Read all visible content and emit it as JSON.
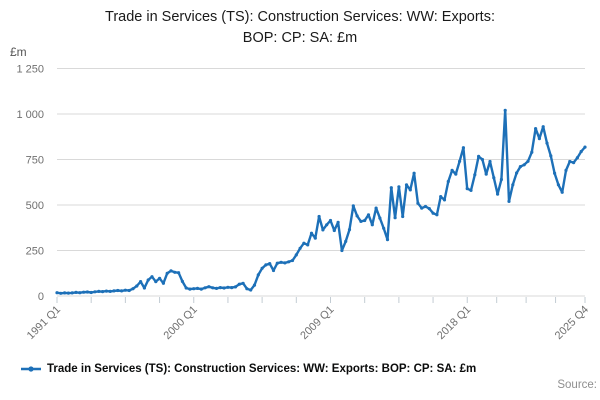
{
  "title": {
    "line1": "Trade in Services (TS): Construction Services: WW: Exports:",
    "line2": "BOP: CP: SA: £m"
  },
  "y_axis": {
    "unit_label": "£m",
    "tick_labels": [
      "0",
      "250",
      "500",
      "750",
      "1 000",
      "1 250"
    ],
    "tick_values": [
      0,
      250,
      500,
      750,
      1000,
      1250
    ]
  },
  "x_axis": {
    "labels": [
      "1991 Q1",
      "2000 Q1",
      "2009 Q1",
      "2018 Q1",
      "2025 Q4"
    ]
  },
  "legend": {
    "label": "Trade in Services (TS): Construction Services: WW: Exports: BOP: CP: SA: £m"
  },
  "source": {
    "label": "Source:"
  },
  "colors": {
    "line": "#1d70b8",
    "grid": "#d9d9d9",
    "axis_text": "#707070",
    "tick": "#c3ccd3",
    "title_text": "#1a1a1a"
  },
  "chart_data": {
    "type": "line",
    "title": "Trade in Services (TS): Construction Services: WW: Exports: BOP: CP: SA: £m",
    "xlabel": "",
    "ylabel": "£m",
    "ylim": [
      0,
      1250
    ],
    "grid": "horizontal",
    "legend_position": "bottom-left",
    "frequency": "quarterly",
    "x_start": "1991 Q1",
    "x_end": "2025 Q4",
    "x_tick_labels": [
      "1991 Q1",
      "2000 Q1",
      "2009 Q1",
      "2018 Q1",
      "2025 Q4"
    ],
    "label_indices": [
      0,
      36,
      72,
      108,
      139
    ],
    "values": [
      18,
      15,
      17,
      16,
      17,
      20,
      18,
      21,
      22,
      19,
      23,
      25,
      24,
      27,
      25,
      28,
      30,
      28,
      32,
      30,
      40,
      55,
      79,
      44,
      88,
      106,
      79,
      97,
      70,
      125,
      138,
      130,
      128,
      80,
      44,
      38,
      40,
      42,
      38,
      45,
      51,
      45,
      42,
      46,
      44,
      48,
      46,
      50,
      65,
      70,
      40,
      33,
      60,
      116,
      152,
      171,
      178,
      140,
      180,
      185,
      182,
      188,
      195,
      226,
      262,
      290,
      281,
      345,
      318,
      437,
      363,
      391,
      415,
      360,
      405,
      250,
      300,
      365,
      495,
      440,
      410,
      415,
      446,
      391,
      483,
      428,
      372,
      310,
      595,
      430,
      600,
      437,
      611,
      583,
      675,
      510,
      483,
      492,
      480,
      455,
      446,
      546,
      528,
      629,
      690,
      670,
      740,
      815,
      590,
      580,
      666,
      767,
      750,
      670,
      739,
      650,
      560,
      640,
      1020,
      520,
      611,
      676,
      711,
      721,
      740,
      790,
      920,
      865,
      930,
      840,
      770,
      675,
      611,
      570,
      690,
      739,
      733,
      760,
      794,
      818
    ]
  }
}
